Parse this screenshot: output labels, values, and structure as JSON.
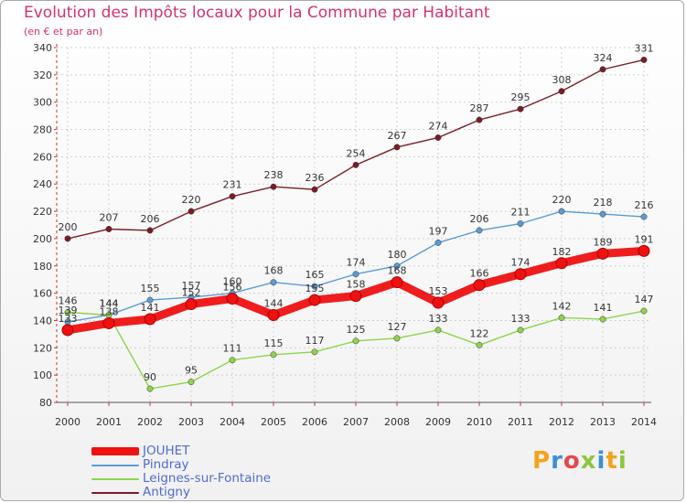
{
  "header": {
    "title": "Evolution des Impôts locaux pour la Commune par Habitant",
    "subtitle": "(en € et par an)"
  },
  "brand": {
    "text": "Proxiti",
    "colors": [
      "#f5a21b",
      "#3b8fd9",
      "#e5484d",
      "#8cc63f",
      "#3b8fd9",
      "#f5a21b",
      "#8cc63f"
    ]
  },
  "colors": {
    "title": "#d2326f",
    "legend_text": "#4f6bd1",
    "axis": "#333333",
    "grid": "#cfcfcf"
  },
  "chart_data": {
    "type": "line",
    "title": "Evolution des Impôts locaux pour la Commune par Habitant",
    "subtitle": "(en € et par an)",
    "xlabel": "",
    "ylabel": "",
    "ylim": [
      80,
      340
    ],
    "yticks": [
      80,
      100,
      120,
      140,
      160,
      180,
      200,
      220,
      240,
      260,
      280,
      300,
      320,
      340
    ],
    "grid": true,
    "legend_position": "bottom-left",
    "categories": [
      "2000",
      "2001",
      "2002",
      "2003",
      "2004",
      "2005",
      "2006",
      "2007",
      "2008",
      "2009",
      "2010",
      "2011",
      "2012",
      "2013",
      "2014"
    ],
    "series": [
      {
        "name": "Antigny",
        "color": "#7b1c25",
        "values": [
          200,
          207,
          206,
          220,
          231,
          238,
          236,
          254,
          267,
          274,
          287,
          295,
          308,
          324,
          331
        ]
      },
      {
        "name": "Pindray",
        "color": "#5b9bd5",
        "values": [
          139,
          144,
          155,
          157,
          160,
          168,
          165,
          174,
          180,
          197,
          206,
          211,
          220,
          218,
          216
        ]
      },
      {
        "name": "Leignes-sur-Fontaine",
        "color": "#8fd34d",
        "values": [
          146,
          144,
          90,
          95,
          111,
          115,
          117,
          125,
          127,
          133,
          122,
          133,
          142,
          141,
          147
        ]
      },
      {
        "name": "JOUHET",
        "color": "#ee1111",
        "values": [
          133,
          138,
          141,
          152,
          156,
          144,
          155,
          158,
          168,
          153,
          166,
          174,
          182,
          189,
          191
        ]
      }
    ]
  }
}
